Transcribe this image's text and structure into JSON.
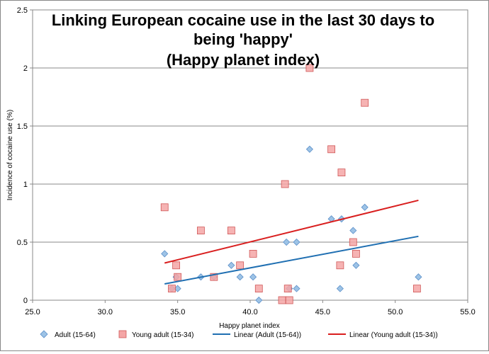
{
  "chart_data": {
    "type": "scatter",
    "title_lines": [
      "Linking European cocaine use in the last 30 days to",
      "being 'happy'",
      "(Happy planet index)"
    ],
    "xlabel": "Happy planet index",
    "ylabel": "Incidence of cocaine  use  (%)",
    "xlim": [
      25,
      55
    ],
    "ylim": [
      0,
      2.5
    ],
    "x_ticks": [
      25,
      30,
      35,
      40,
      45,
      50,
      55
    ],
    "x_tick_labels": [
      "25.0",
      "30.0",
      "35.0",
      "40.0",
      "45.0",
      "50.0",
      "55.0"
    ],
    "y_ticks": [
      0,
      0.5,
      1,
      1.5,
      2,
      2.5
    ],
    "y_tick_labels": [
      "0",
      "0.5",
      "1",
      "1.5",
      "2",
      "2.5"
    ],
    "grid": "horizontal",
    "legend_position": "bottom",
    "series": [
      {
        "name": "Adult (15-64)",
        "marker": "diamond",
        "fill": "#9dc3e6",
        "stroke": "#5b8fc9",
        "points": [
          [
            34.1,
            0.4
          ],
          [
            34.6,
            0.1
          ],
          [
            34.9,
            0.2
          ],
          [
            35.0,
            0.1
          ],
          [
            36.6,
            0.2
          ],
          [
            37.5,
            0.2
          ],
          [
            38.7,
            0.3
          ],
          [
            39.3,
            0.2
          ],
          [
            40.2,
            0.2
          ],
          [
            40.6,
            0.0
          ],
          [
            42.5,
            0.5
          ],
          [
            42.7,
            0.1
          ],
          [
            43.2,
            0.5
          ],
          [
            43.2,
            0.1
          ],
          [
            44.1,
            1.3
          ],
          [
            45.6,
            0.7
          ],
          [
            46.2,
            0.1
          ],
          [
            46.3,
            0.7
          ],
          [
            47.1,
            0.6
          ],
          [
            47.3,
            0.3
          ],
          [
            47.9,
            0.8
          ],
          [
            51.6,
            0.2
          ]
        ]
      },
      {
        "name": "Young adult (15-34)",
        "marker": "square",
        "fill": "#f4a6a6",
        "stroke": "#d05858",
        "points": [
          [
            34.1,
            0.8
          ],
          [
            34.6,
            0.1
          ],
          [
            34.9,
            0.3
          ],
          [
            35.0,
            0.2
          ],
          [
            36.6,
            0.6
          ],
          [
            37.5,
            0.2
          ],
          [
            38.7,
            0.6
          ],
          [
            39.3,
            0.3
          ],
          [
            40.2,
            0.4
          ],
          [
            40.6,
            0.1
          ],
          [
            42.2,
            0.0
          ],
          [
            42.4,
            1.0
          ],
          [
            42.6,
            0.1
          ],
          [
            42.7,
            0.0
          ],
          [
            44.1,
            2.0
          ],
          [
            45.6,
            1.3
          ],
          [
            46.2,
            0.3
          ],
          [
            46.3,
            1.1
          ],
          [
            47.1,
            0.5
          ],
          [
            47.3,
            0.4
          ],
          [
            47.9,
            1.7
          ],
          [
            51.5,
            0.1
          ]
        ]
      }
    ],
    "trendlines": [
      {
        "name": "Linear (Adult (15-64))",
        "color": "#1f6fb2",
        "x": [
          34.1,
          51.6
        ],
        "y": [
          0.14,
          0.55
        ]
      },
      {
        "name": "Linear (Young adult (15-34))",
        "color": "#d91e1e",
        "x": [
          34.1,
          51.6
        ],
        "y": [
          0.32,
          0.86
        ]
      }
    ]
  }
}
